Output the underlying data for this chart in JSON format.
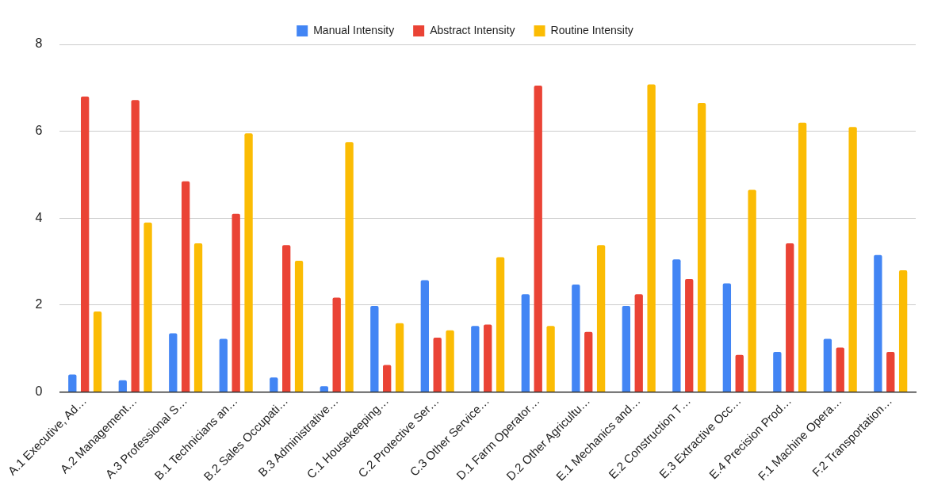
{
  "chart_data": {
    "type": "bar",
    "categories": [
      "A.1 Executive, Ad…",
      "A.2 Management…",
      "A.3 Professional S…",
      "B.1 Technicians an…",
      "B.2 Sales Occupati…",
      "B.3 Administrative…",
      "C.1 Housekeeping…",
      "C.2 Protective Ser…",
      "C.3 Other Service…",
      "D.1 Farm Operator…",
      "D.2 Other Agricultu…",
      "E.1 Mechanics and…",
      "E.2 Construction T…",
      "E.3 Extractive Occ…",
      "E.4 Precision Prod…",
      "F.1 Machine Opera…",
      "F.2 Transportation…"
    ],
    "series": [
      {
        "name": "Manual Intensity",
        "color": "#4285f4",
        "values": [
          0.4,
          0.27,
          1.35,
          1.22,
          0.33,
          0.13,
          1.98,
          2.57,
          1.52,
          2.25,
          2.47,
          1.98,
          3.05,
          2.5,
          0.92,
          1.22,
          3.15
        ]
      },
      {
        "name": "Abstract Intensity",
        "color": "#ea4335",
        "values": [
          6.8,
          6.72,
          4.85,
          4.1,
          3.38,
          2.17,
          0.62,
          1.25,
          1.55,
          7.05,
          1.38,
          2.25,
          2.6,
          0.85,
          3.42,
          1.02,
          0.92
        ]
      },
      {
        "name": "Routine Intensity",
        "color": "#fbbc04",
        "values": [
          1.85,
          3.9,
          3.42,
          5.95,
          3.02,
          5.75,
          1.58,
          1.42,
          3.1,
          1.52,
          3.38,
          7.08,
          6.65,
          4.65,
          6.2,
          6.1,
          2.8
        ]
      }
    ],
    "ylim": [
      0,
      8
    ],
    "yticks": [
      0,
      2,
      4,
      6,
      8
    ],
    "grid": "y",
    "legend": "top"
  }
}
